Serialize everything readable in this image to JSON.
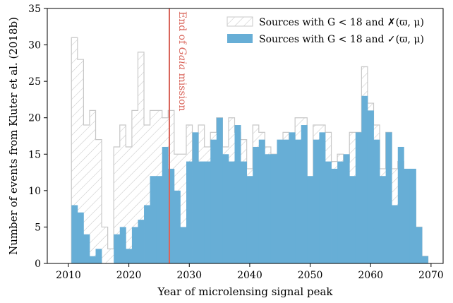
{
  "chart_data": {
    "type": "bar",
    "xlabel": "Year of microlensing signal peak",
    "ylabel": "Number of events from Kluter et al. (2018b)",
    "xlim": [
      2006.5,
      2072
    ],
    "ylim": [
      0,
      35
    ],
    "xticks": [
      2010,
      2020,
      2030,
      2040,
      2050,
      2060,
      2070
    ],
    "yticks": [
      0,
      5,
      10,
      15,
      20,
      25,
      30,
      35
    ],
    "grid": false,
    "legend_position": "top-right",
    "bin_start": 2010.5,
    "bin_width": 1,
    "series": [
      {
        "name": "Sources with G < 18 and ✗(ϖ, μ)",
        "style": "hatched",
        "color": "#c8c8c8",
        "values": [
          31,
          28,
          19,
          21,
          17,
          5,
          2,
          16,
          19,
          16,
          21,
          29,
          19,
          21,
          21,
          20,
          21,
          15,
          15,
          19,
          13,
          19,
          16,
          18,
          20,
          16,
          20,
          18,
          17,
          13,
          19,
          18,
          16,
          15,
          15,
          18,
          16,
          20,
          20,
          10,
          19,
          19,
          18,
          14,
          15,
          14,
          18,
          18,
          27,
          22,
          19,
          13,
          18,
          13,
          14,
          10,
          10,
          5,
          1
        ]
      },
      {
        "name": "Sources with G < 18 and ✓(ϖ, μ)",
        "style": "filled",
        "color": "#67aed6",
        "values": [
          8,
          7,
          4,
          1,
          2,
          0,
          0,
          4,
          5,
          2,
          5,
          6,
          8,
          12,
          12,
          16,
          13,
          10,
          5,
          14,
          18,
          14,
          14,
          17,
          20,
          15,
          14,
          19,
          14,
          12,
          16,
          17,
          15,
          15,
          17,
          17,
          18,
          17,
          19,
          12,
          17,
          18,
          14,
          13,
          14,
          15,
          12,
          18,
          23,
          21,
          17,
          12,
          18,
          8,
          16,
          13,
          13,
          5,
          1
        ]
      }
    ],
    "annotations": [
      {
        "text": "End of Gaia mission",
        "x": 2026.7,
        "color": "#d9645a"
      }
    ]
  }
}
